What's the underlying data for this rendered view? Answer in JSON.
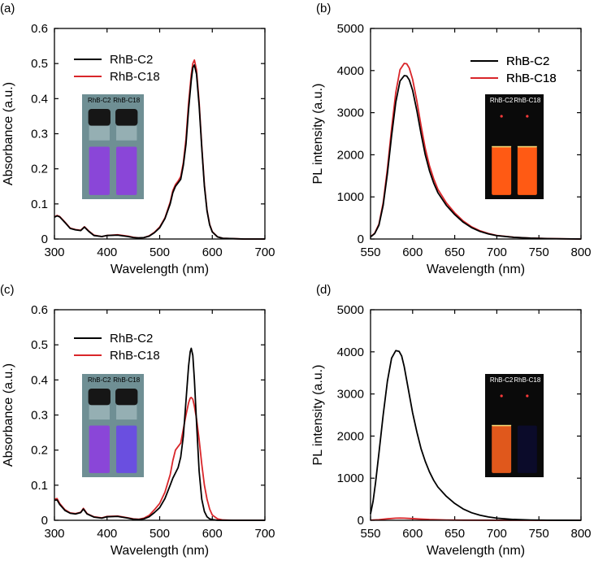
{
  "colors": {
    "rhb_c2": "#000000",
    "rhb_c18": "#d9262a",
    "uvvis_photo_bg": "#6f8f94",
    "pl_photo_bg": "#0a0a0a",
    "vial_cap": "#161616",
    "vial_purple": "#8a46d8",
    "vial_blue": "#6a4fe0",
    "vial_orange": "#ff5a14",
    "vial_dark_orange": "#e0581c",
    "vial_dark_blue": "#0b0b2a"
  },
  "chart_data": [
    {
      "panel_label": "(a)",
      "type": "line",
      "xlabel": "Wavelength (nm)",
      "ylabel": "Absorbance (a.u.)",
      "xlim": [
        300,
        700
      ],
      "ylim": [
        0,
        0.6
      ],
      "xticks": [
        300,
        400,
        500,
        600,
        700
      ],
      "yticks": [
        0,
        0.1,
        0.2,
        0.3,
        0.4,
        0.5,
        0.6
      ],
      "xtick_labels": [
        "300",
        "400",
        "500",
        "600",
        "700"
      ],
      "ytick_labels": [
        "0",
        "0.1",
        "0.2",
        "0.3",
        "0.4",
        "0.5",
        "0.6"
      ],
      "legend": [
        "RhB-C2",
        "RhB-C18"
      ],
      "legend_position": "top-left",
      "inset_photo": {
        "labels": [
          "RhB-C2",
          "RhB-C18"
        ],
        "liquid": [
          "purple",
          "purple"
        ],
        "background": "gray"
      },
      "series": [
        {
          "name": "RhB-C2",
          "x": [
            300,
            305,
            310,
            320,
            330,
            340,
            350,
            357,
            365,
            375,
            390,
            400,
            420,
            440,
            450,
            460,
            470,
            480,
            490,
            500,
            510,
            520,
            525,
            530,
            535,
            540,
            545,
            550,
            555,
            560,
            563,
            566,
            570,
            575,
            580,
            585,
            590,
            595,
            600,
            610,
            620,
            640,
            660,
            700
          ],
          "y": [
            0.062,
            0.066,
            0.063,
            0.047,
            0.03,
            0.026,
            0.024,
            0.034,
            0.022,
            0.01,
            0.007,
            0.01,
            0.011,
            0.007,
            0.004,
            0.003,
            0.004,
            0.008,
            0.018,
            0.032,
            0.058,
            0.1,
            0.132,
            0.15,
            0.16,
            0.17,
            0.21,
            0.27,
            0.37,
            0.452,
            0.488,
            0.496,
            0.47,
            0.38,
            0.26,
            0.15,
            0.08,
            0.04,
            0.02,
            0.006,
            0.002,
            0.001,
            0.0,
            0.0
          ]
        },
        {
          "name": "RhB-C18",
          "x": [
            300,
            305,
            310,
            320,
            330,
            340,
            350,
            357,
            365,
            375,
            390,
            400,
            420,
            440,
            450,
            460,
            470,
            480,
            490,
            500,
            510,
            520,
            525,
            530,
            535,
            540,
            545,
            550,
            555,
            560,
            563,
            566,
            570,
            575,
            580,
            585,
            590,
            595,
            600,
            610,
            620,
            640,
            660,
            700
          ],
          "y": [
            0.063,
            0.067,
            0.064,
            0.048,
            0.031,
            0.027,
            0.025,
            0.035,
            0.023,
            0.011,
            0.007,
            0.01,
            0.012,
            0.008,
            0.005,
            0.003,
            0.004,
            0.009,
            0.019,
            0.034,
            0.06,
            0.105,
            0.138,
            0.155,
            0.165,
            0.178,
            0.218,
            0.285,
            0.388,
            0.468,
            0.5,
            0.51,
            0.482,
            0.39,
            0.265,
            0.155,
            0.082,
            0.042,
            0.021,
            0.006,
            0.002,
            0.001,
            0.0,
            0.0
          ]
        }
      ]
    },
    {
      "panel_label": "(b)",
      "type": "line",
      "xlabel": "Wavelength (nm)",
      "ylabel": "PL intensity (a.u.)",
      "xlim": [
        550,
        800
      ],
      "ylim": [
        0,
        5000
      ],
      "xticks": [
        550,
        600,
        650,
        700,
        750,
        800
      ],
      "yticks": [
        0,
        1000,
        2000,
        3000,
        4000,
        5000
      ],
      "xtick_labels": [
        "550",
        "600",
        "650",
        "700",
        "750",
        "800"
      ],
      "ytick_labels": [
        "0",
        "1000",
        "2000",
        "3000",
        "4000",
        "5000"
      ],
      "legend": [
        "RhB-C2",
        "RhB-C18"
      ],
      "legend_position": "top-right",
      "inset_photo": {
        "labels": [
          "RhB-C2",
          "RhB-C18"
        ],
        "liquid": [
          "orange",
          "orange"
        ],
        "background": "black"
      },
      "series": [
        {
          "name": "RhB-C2",
          "x": [
            550,
            555,
            560,
            565,
            570,
            575,
            580,
            585,
            590,
            593,
            596,
            600,
            605,
            610,
            615,
            620,
            625,
            630,
            640,
            650,
            660,
            670,
            680,
            690,
            700,
            720,
            740,
            760,
            780,
            800
          ],
          "y": [
            50,
            130,
            330,
            800,
            1550,
            2450,
            3250,
            3750,
            3880,
            3870,
            3780,
            3530,
            3050,
            2500,
            2000,
            1620,
            1330,
            1100,
            800,
            580,
            400,
            270,
            180,
            120,
            80,
            40,
            20,
            10,
            5,
            0
          ]
        },
        {
          "name": "RhB-C18",
          "x": [
            550,
            555,
            560,
            565,
            570,
            575,
            580,
            585,
            590,
            593,
            596,
            600,
            605,
            610,
            615,
            620,
            625,
            630,
            640,
            650,
            660,
            670,
            680,
            690,
            700,
            720,
            740,
            760,
            780,
            800
          ],
          "y": [
            55,
            140,
            355,
            860,
            1660,
            2620,
            3480,
            4020,
            4170,
            4160,
            4060,
            3790,
            3280,
            2690,
            2150,
            1740,
            1430,
            1180,
            860,
            620,
            430,
            290,
            195,
            130,
            85,
            42,
            22,
            11,
            5,
            0
          ]
        }
      ]
    },
    {
      "panel_label": "(c)",
      "type": "line",
      "xlabel": "Wavelength (nm)",
      "ylabel": "Absorbance (a.u.)",
      "xlim": [
        300,
        700
      ],
      "ylim": [
        0,
        0.6
      ],
      "xticks": [
        300,
        400,
        500,
        600,
        700
      ],
      "yticks": [
        0,
        0.1,
        0.2,
        0.3,
        0.4,
        0.5,
        0.6
      ],
      "xtick_labels": [
        "300",
        "400",
        "500",
        "600",
        "700"
      ],
      "ytick_labels": [
        "0",
        "0.1",
        "0.2",
        "0.3",
        "0.4",
        "0.5",
        "0.6"
      ],
      "legend": [
        "RhB-C2",
        "RhB-C18"
      ],
      "legend_position": "top-left",
      "inset_photo": {
        "labels": [
          "RhB-C2",
          "RhB-C18"
        ],
        "liquid": [
          "purple",
          "blue"
        ],
        "background": "gray"
      },
      "series": [
        {
          "name": "RhB-C2",
          "x": [
            300,
            305,
            310,
            320,
            330,
            340,
            350,
            355,
            362,
            375,
            390,
            400,
            420,
            440,
            450,
            460,
            470,
            480,
            490,
            500,
            510,
            520,
            525,
            530,
            535,
            540,
            545,
            550,
            555,
            558,
            560,
            563,
            566,
            570,
            575,
            580,
            585,
            590,
            595,
            600,
            610,
            620,
            640,
            700
          ],
          "y": [
            0.057,
            0.058,
            0.045,
            0.028,
            0.02,
            0.018,
            0.022,
            0.032,
            0.018,
            0.009,
            0.006,
            0.01,
            0.011,
            0.006,
            0.003,
            0.002,
            0.004,
            0.01,
            0.022,
            0.036,
            0.062,
            0.1,
            0.12,
            0.135,
            0.15,
            0.18,
            0.24,
            0.34,
            0.44,
            0.48,
            0.49,
            0.47,
            0.4,
            0.28,
            0.14,
            0.06,
            0.025,
            0.01,
            0.004,
            0.002,
            0.0,
            0.0,
            0.0,
            0.0
          ]
        },
        {
          "name": "RhB-C18",
          "x": [
            300,
            305,
            310,
            320,
            330,
            340,
            350,
            355,
            362,
            375,
            390,
            400,
            420,
            440,
            450,
            460,
            470,
            480,
            490,
            500,
            510,
            520,
            525,
            530,
            535,
            540,
            545,
            550,
            555,
            558,
            560,
            563,
            566,
            570,
            575,
            580,
            585,
            590,
            595,
            600,
            610,
            620,
            640,
            700
          ],
          "y": [
            0.06,
            0.062,
            0.048,
            0.03,
            0.021,
            0.019,
            0.023,
            0.034,
            0.019,
            0.01,
            0.007,
            0.011,
            0.012,
            0.007,
            0.004,
            0.003,
            0.006,
            0.014,
            0.03,
            0.048,
            0.08,
            0.13,
            0.17,
            0.2,
            0.21,
            0.22,
            0.26,
            0.3,
            0.335,
            0.348,
            0.35,
            0.345,
            0.325,
            0.29,
            0.23,
            0.16,
            0.1,
            0.06,
            0.032,
            0.015,
            0.004,
            0.001,
            0.0,
            0.0
          ]
        }
      ]
    },
    {
      "panel_label": "(d)",
      "type": "line",
      "xlabel": "Wavelength (nm)",
      "ylabel": "PL intensity (a.u.)",
      "xlim": [
        550,
        800
      ],
      "ylim": [
        0,
        5000
      ],
      "xticks": [
        550,
        600,
        650,
        700,
        750,
        800
      ],
      "yticks": [
        0,
        1000,
        2000,
        3000,
        4000,
        5000
      ],
      "xtick_labels": [
        "550",
        "600",
        "650",
        "700",
        "750",
        "800"
      ],
      "ytick_labels": [
        "0",
        "1000",
        "2000",
        "3000",
        "4000",
        "5000"
      ],
      "legend": [
        "RhB-C2",
        "RhB-C18"
      ],
      "legend_position": "top-right",
      "inset_photo": {
        "labels": [
          "RhB-C2",
          "RhB-C18"
        ],
        "liquid": [
          "orange",
          "dark"
        ],
        "background": "black"
      },
      "series": [
        {
          "name": "RhB-C2",
          "x": [
            550,
            553,
            556,
            560,
            565,
            570,
            575,
            580,
            584,
            587,
            590,
            595,
            600,
            605,
            610,
            615,
            620,
            625,
            630,
            640,
            650,
            660,
            670,
            680,
            690,
            700,
            720,
            740,
            760,
            780,
            800
          ],
          "y": [
            150,
            450,
            900,
            1600,
            2500,
            3300,
            3850,
            4030,
            4010,
            3900,
            3650,
            3100,
            2550,
            2100,
            1700,
            1400,
            1150,
            950,
            790,
            570,
            400,
            270,
            180,
            120,
            80,
            50,
            20,
            8,
            3,
            1,
            0
          ]
        },
        {
          "name": "RhB-C18",
          "x": [
            550,
            560,
            570,
            580,
            585,
            590,
            600,
            610,
            620,
            640,
            660,
            700,
            750,
            800
          ],
          "y": [
            5,
            15,
            35,
            50,
            52,
            50,
            40,
            28,
            18,
            8,
            4,
            1,
            0,
            0
          ]
        }
      ]
    }
  ]
}
